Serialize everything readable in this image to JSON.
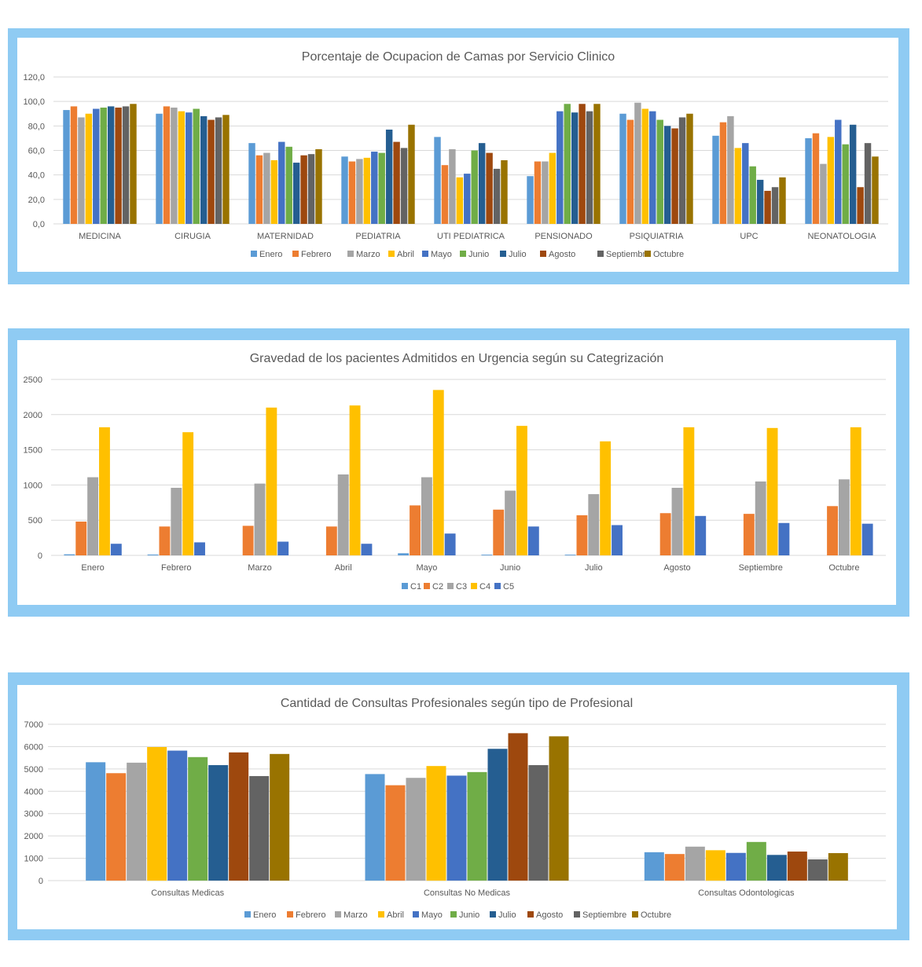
{
  "colors": {
    "frame": "#8fcbf3",
    "grid": "#d9d9d9",
    "axis_text": "#595959",
    "title_text": "#595959",
    "series": [
      "#5b9bd5",
      "#ed7d31",
      "#a5a5a5",
      "#ffc000",
      "#4472c4",
      "#70ad47",
      "#255e91",
      "#9e480e",
      "#636363",
      "#997300"
    ]
  },
  "chart_data": [
    {
      "type": "bar",
      "title": "Porcentaje de Ocupacion de Camas por Servicio Clinico",
      "xlabel": "",
      "ylabel": "",
      "ylim": [
        0,
        120
      ],
      "yticks": [
        "0,0",
        "20,0",
        "40,0",
        "60,0",
        "80,0",
        "100,0",
        "120,0"
      ],
      "categories": [
        "MEDICINA",
        "CIRUGIA",
        "MATERNIDAD",
        "PEDIATRIA",
        "UTI PEDIATRICA",
        "PENSIONADO",
        "PSIQUIATRIA",
        "UPC",
        "NEONATOLOGIA"
      ],
      "legend_position": "bottom",
      "series": [
        {
          "name": "Enero",
          "values": [
            93,
            90,
            66,
            55,
            71,
            39,
            90,
            72,
            70
          ]
        },
        {
          "name": "Febrero",
          "values": [
            96,
            96,
            56,
            51,
            48,
            51,
            85,
            83,
            74
          ]
        },
        {
          "name": "Marzo",
          "values": [
            87,
            95,
            58,
            53,
            61,
            51,
            99,
            88,
            49
          ]
        },
        {
          "name": "Abril",
          "values": [
            90,
            92,
            52,
            54,
            38,
            58,
            94,
            62,
            71
          ]
        },
        {
          "name": "Mayo",
          "values": [
            94,
            91,
            67,
            59,
            41,
            92,
            92,
            66,
            85
          ]
        },
        {
          "name": "Junio",
          "values": [
            95,
            94,
            63,
            58,
            60,
            98,
            85,
            47,
            65
          ]
        },
        {
          "name": "Julio",
          "values": [
            96,
            88,
            50,
            77,
            66,
            91,
            80,
            36,
            81
          ]
        },
        {
          "name": "Agosto",
          "values": [
            95,
            85,
            56,
            67,
            58,
            98,
            78,
            27,
            30
          ]
        },
        {
          "name": "Septiembre",
          "values": [
            96,
            87,
            57,
            62,
            45,
            92,
            87,
            30,
            66
          ]
        },
        {
          "name": "Octubre",
          "values": [
            98,
            89,
            61,
            81,
            52,
            98,
            90,
            38,
            55
          ]
        }
      ]
    },
    {
      "type": "bar",
      "title": "Gravedad de los pacientes Admitidos en Urgencia según su Categrización",
      "xlabel": "",
      "ylabel": "",
      "ylim": [
        0,
        2500
      ],
      "yticks": [
        "0",
        "500",
        "1000",
        "1500",
        "2000",
        "2500"
      ],
      "categories": [
        "Enero",
        "Febrero",
        "Marzo",
        "Abril",
        "Mayo",
        "Junio",
        "Julio",
        "Agosto",
        "Septiembre",
        "Octubre"
      ],
      "legend_position": "bottom",
      "series": [
        {
          "name": "C1",
          "values": [
            15,
            12,
            0,
            0,
            30,
            10,
            10,
            0,
            0,
            0
          ]
        },
        {
          "name": "C2",
          "values": [
            480,
            410,
            420,
            410,
            710,
            650,
            570,
            600,
            590,
            700
          ]
        },
        {
          "name": "C3",
          "values": [
            1110,
            960,
            1020,
            1150,
            1110,
            920,
            870,
            960,
            1050,
            1080
          ]
        },
        {
          "name": "C4",
          "values": [
            1820,
            1750,
            2100,
            2130,
            2350,
            1840,
            1620,
            1820,
            1810,
            1820
          ]
        },
        {
          "name": "C5",
          "values": [
            165,
            185,
            195,
            165,
            310,
            410,
            430,
            560,
            460,
            450
          ]
        }
      ]
    },
    {
      "type": "bar",
      "title": "Cantidad de Consultas Profesionales según tipo de Profesional",
      "xlabel": "",
      "ylabel": "",
      "ylim": [
        0,
        7000
      ],
      "yticks": [
        "0",
        "1000",
        "2000",
        "3000",
        "4000",
        "5000",
        "6000",
        "7000"
      ],
      "categories": [
        "Consultas Medicas",
        "Consultas No Medicas",
        "Consultas Odontologicas"
      ],
      "legend_position": "bottom",
      "series": [
        {
          "name": "Enero",
          "values": [
            5300,
            4770,
            1270
          ]
        },
        {
          "name": "Febrero",
          "values": [
            4810,
            4270,
            1190
          ]
        },
        {
          "name": "Marzo",
          "values": [
            5280,
            4600,
            1520
          ]
        },
        {
          "name": "Abril",
          "values": [
            5980,
            5130,
            1360
          ]
        },
        {
          "name": "Mayo",
          "values": [
            5820,
            4700,
            1240
          ]
        },
        {
          "name": "Junio",
          "values": [
            5530,
            4860,
            1730
          ]
        },
        {
          "name": "Julio",
          "values": [
            5170,
            5900,
            1150
          ]
        },
        {
          "name": "Agosto",
          "values": [
            5740,
            6600,
            1300
          ]
        },
        {
          "name": "Septiembre",
          "values": [
            4680,
            5170,
            950
          ]
        },
        {
          "name": "Octubre",
          "values": [
            5670,
            6460,
            1230
          ]
        }
      ]
    }
  ]
}
